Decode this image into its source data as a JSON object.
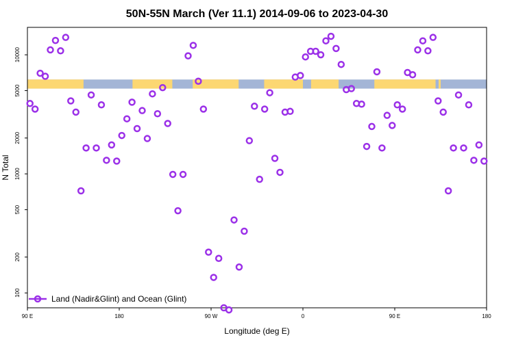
{
  "chart_data": {
    "type": "scatter",
    "title": "50N-55N March (Ver 11.1)   2014-09-06 to 2023-04-30",
    "xlabel": "Longitude (deg E)",
    "ylabel": "N Total",
    "y_scale": "log",
    "xlim": [
      90,
      540
    ],
    "ylim": [
      75,
      17000
    ],
    "x_ticks": [
      {
        "value": 90,
        "label": "90 E"
      },
      {
        "value": 180,
        "label": "180"
      },
      {
        "value": 270,
        "label": "90 W"
      },
      {
        "value": 360,
        "label": "0"
      },
      {
        "value": 450,
        "label": "90 E"
      },
      {
        "value": 540,
        "label": "180"
      }
    ],
    "y_ticks": [
      {
        "value": 100,
        "label": "100"
      },
      {
        "value": 200,
        "label": "200"
      },
      {
        "value": 500,
        "label": "500"
      },
      {
        "value": 1000,
        "label": "1000"
      },
      {
        "value": 2000,
        "label": "2000"
      },
      {
        "value": 5000,
        "label": "5000"
      },
      {
        "value": 10000,
        "label": "10000"
      }
    ],
    "series": [
      {
        "name": "Land (Nadir&Glint) and Ocean (Glint)",
        "color": "#9b30e8",
        "x": [
          92.5,
          97.5,
          102.5,
          107.5,
          112.5,
          117.5,
          122.5,
          127.5,
          132.5,
          137.5,
          142.5,
          147.5,
          152.5,
          157.5,
          162.5,
          167.5,
          172.5,
          177.5,
          182.5,
          187.5,
          192.5,
          197.5,
          202.5,
          207.5,
          212.5,
          217.5,
          222.5,
          227.5,
          232.5,
          237.5,
          242.5,
          247.5,
          252.5,
          257.5,
          262.5,
          267.5,
          272.5,
          277.5,
          282.5,
          287.5,
          292.5,
          297.5,
          302.5,
          307.5,
          312.5,
          317.5,
          322.5,
          327.5,
          332.5,
          337.5,
          342.5,
          347.5,
          352.5,
          357.5,
          362.5,
          367.5,
          372.5,
          377.5,
          382.5,
          387.5,
          392.5,
          397.5,
          402.5,
          407.5,
          412.5,
          417.5,
          422.5,
          427.5,
          432.5,
          437.5,
          442.5,
          447.5,
          452.5,
          457.5,
          462.5,
          467.5,
          472.5,
          477.5,
          482.5,
          487.5,
          492.5,
          497.5,
          502.5,
          507.5,
          512.5,
          517.5,
          522.5,
          527.5,
          532.5,
          537.5
        ],
        "y": [
          3900,
          3500,
          7000,
          6600,
          11000,
          13200,
          10800,
          14000,
          4100,
          3300,
          720,
          1650,
          4600,
          1650,
          3800,
          1300,
          1750,
          1280,
          2100,
          2900,
          4000,
          2400,
          3400,
          1980,
          4700,
          3200,
          5300,
          2650,
          990,
          490,
          990,
          9800,
          12000,
          6000,
          3500,
          220,
          135,
          195,
          75,
          72,
          410,
          165,
          330,
          1900,
          3700,
          900,
          3500,
          4800,
          1350,
          1030,
          3300,
          3350,
          6500,
          6700,
          9600,
          10700,
          10700,
          10000,
          13100,
          14300,
          11300,
          8300,
          5100,
          5200,
          3900,
          3850,
          1700,
          2500,
          7200,
          1650,
          3100,
          2550,
          3800,
          3500,
          7100,
          6800,
          11000,
          13100,
          10800,
          14000,
          4100,
          3300,
          720,
          1650,
          4600,
          1650,
          3800,
          1300,
          1750,
          1280
        ]
      }
    ],
    "band": {
      "y_range": [
        5200,
        6200
      ],
      "ocean_color": "#a3b5d6",
      "land_color": "#fcd772",
      "land_spans": [
        [
          90,
          145
        ],
        [
          193,
          232
        ],
        [
          252,
          297
        ],
        [
          322,
          360
        ],
        [
          368,
          395
        ],
        [
          430,
          490
        ],
        [
          493,
          495
        ]
      ]
    },
    "legend": {
      "position": "bottom-left"
    }
  }
}
